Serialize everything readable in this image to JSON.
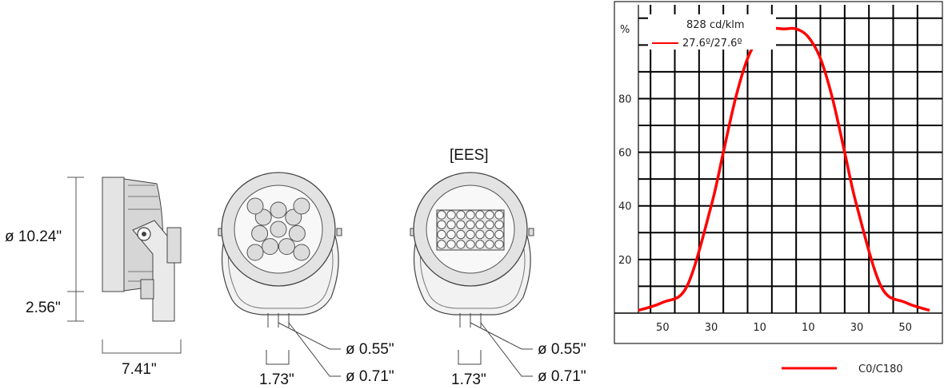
{
  "side_view": {
    "diameter_label": "ø 10.24\"",
    "height_label": "2.56\"",
    "depth_label": "7.41\""
  },
  "front_view_standard": {
    "cable_inner_label": "ø 0.55\"",
    "cable_outer_label": "ø 0.71\"",
    "spacing_label": "1.73\""
  },
  "front_view_ees": {
    "title": "[EES]",
    "cable_inner_label": "ø 0.55\"",
    "cable_outer_label": "ø 0.71\"",
    "spacing_label": "1.73\""
  },
  "chart_data": {
    "type": "line",
    "ylabel": "%",
    "info_text": "828 cd/klm",
    "series": [
      {
        "name": "27.6º/27.6º",
        "color": "#ff0000",
        "x": [
          -60,
          -50,
          -40,
          -30,
          -25,
          -20,
          -15,
          -10,
          -5,
          0,
          5,
          10,
          15,
          20,
          25,
          30,
          40,
          50,
          60
        ],
        "values": [
          1,
          4,
          10,
          40,
          60,
          80,
          95,
          103,
          106,
          106,
          106,
          103,
          95,
          80,
          60,
          40,
          10,
          4,
          1
        ]
      }
    ],
    "x_tick_labels": [
      "50",
      "30",
      "10",
      "10",
      "30",
      "50"
    ],
    "y_ticks": [
      20,
      40,
      60,
      80
    ],
    "xlim": [
      -60,
      60
    ],
    "ylim": [
      0,
      115
    ],
    "grid": true,
    "legend": {
      "label": "C0/C180",
      "color": "#ff0000",
      "placement": "bottom"
    }
  }
}
